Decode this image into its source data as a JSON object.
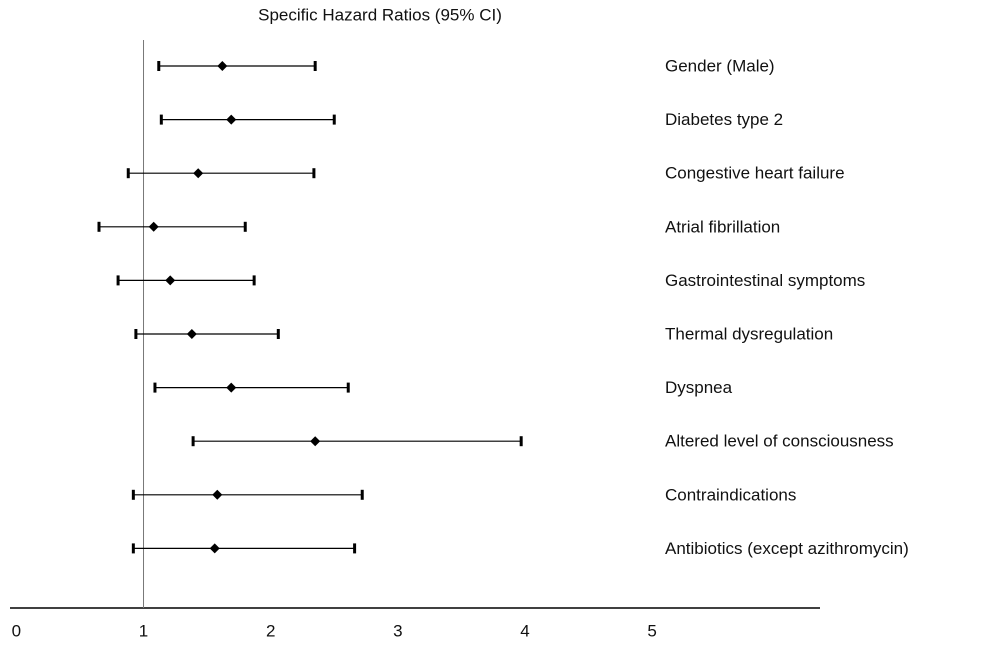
{
  "chart_data": {
    "type": "forest",
    "title": "Specific Hazard Ratios (95% CI)",
    "categories": [
      "Gender (Male)",
      "Diabetes type 2",
      "Congestive heart failure",
      "Atrial fibrillation",
      "Gastrointestinal symptoms",
      "Thermal dysregulation",
      "Dyspnea",
      "Altered level of consciousness",
      "Contraindications",
      "Antibiotics (except azithromycin)"
    ],
    "values": [
      1.62,
      1.69,
      1.43,
      1.08,
      1.21,
      1.38,
      1.69,
      2.35,
      1.58,
      1.56
    ],
    "lower": [
      1.12,
      1.14,
      0.88,
      0.65,
      0.8,
      0.94,
      1.09,
      1.39,
      0.92,
      0.92
    ],
    "upper": [
      2.35,
      2.5,
      2.34,
      1.8,
      1.87,
      2.06,
      2.61,
      3.97,
      2.72,
      2.66
    ],
    "color": "#000000",
    "reference_line": 1,
    "xlim": [
      -0.05,
      6.32
    ],
    "xticks": [
      0,
      1,
      2,
      3,
      4,
      5
    ]
  }
}
